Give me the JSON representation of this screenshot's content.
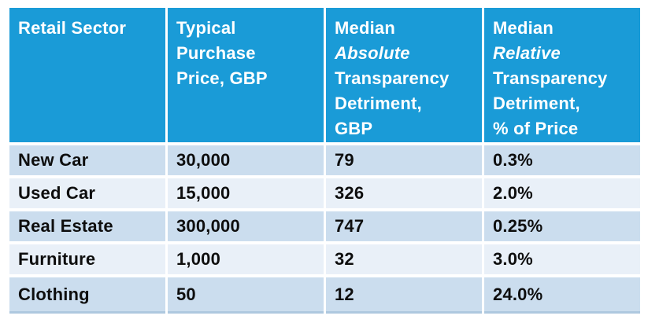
{
  "colors": {
    "header_bg": "#1A9BD7",
    "header_text": "#FFFFFF",
    "row_dark": "#CBDDEE",
    "row_light": "#E9F0F8",
    "body_text": "#0E0E0E",
    "bottom_border": "#AEC8DF",
    "page_bg": "#FFFFFF"
  },
  "table": {
    "header": [
      {
        "lines": [
          {
            "text": "Retail Sector",
            "italic": false
          }
        ]
      },
      {
        "lines": [
          {
            "text": "Typical",
            "italic": false
          },
          {
            "text": "Purchase",
            "italic": false
          },
          {
            "text": "Price, GBP",
            "italic": false
          }
        ]
      },
      {
        "lines": [
          {
            "text": "Median",
            "italic": false
          },
          {
            "text": "Absolute",
            "italic": true
          },
          {
            "text": "Transparency",
            "italic": false
          },
          {
            "text": "Detriment,",
            "italic": false
          },
          {
            "text": "GBP",
            "italic": false
          }
        ]
      },
      {
        "lines": [
          {
            "text": "Median",
            "italic": false
          },
          {
            "text": "Relative",
            "italic": true
          },
          {
            "text": "Transparency",
            "italic": false
          },
          {
            "text": "Detriment,",
            "italic": false
          },
          {
            "text": "% of Price",
            "italic": false
          }
        ]
      }
    ],
    "rows": [
      {
        "cells": [
          "New Car",
          "30,000",
          "79",
          "0.3%"
        ]
      },
      {
        "cells": [
          "Used Car",
          "15,000",
          "326",
          "2.0%"
        ]
      },
      {
        "cells": [
          "Real Estate",
          "300,000",
          "747",
          "0.25%"
        ]
      },
      {
        "cells": [
          "Furniture",
          "1,000",
          "32",
          "3.0%"
        ]
      },
      {
        "cells": [
          "Clothing",
          "50",
          "12",
          "24.0%"
        ]
      }
    ]
  },
  "chart_data": {
    "type": "table",
    "columns": [
      "Retail Sector",
      "Typical Purchase Price, GBP",
      "Median Absolute Transparency Detriment, GBP",
      "Median Relative Transparency Detriment, % of Price"
    ],
    "rows": [
      [
        "New Car",
        "30,000",
        "79",
        "0.3%"
      ],
      [
        "Used Car",
        "15,000",
        "326",
        "2.0%"
      ],
      [
        "Real Estate",
        "300,000",
        "747",
        "0.25%"
      ],
      [
        "Furniture",
        "1,000",
        "32",
        "3.0%"
      ],
      [
        "Clothing",
        "50",
        "12",
        "24.0%"
      ]
    ],
    "numeric": {
      "typical_purchase_price_gbp": [
        30000,
        15000,
        300000,
        1000,
        50
      ],
      "median_absolute_transparency_detriment_gbp": [
        79,
        326,
        747,
        32,
        12
      ],
      "median_relative_transparency_detriment_pct_of_price": [
        0.3,
        2.0,
        0.25,
        3.0,
        24.0
      ]
    }
  }
}
